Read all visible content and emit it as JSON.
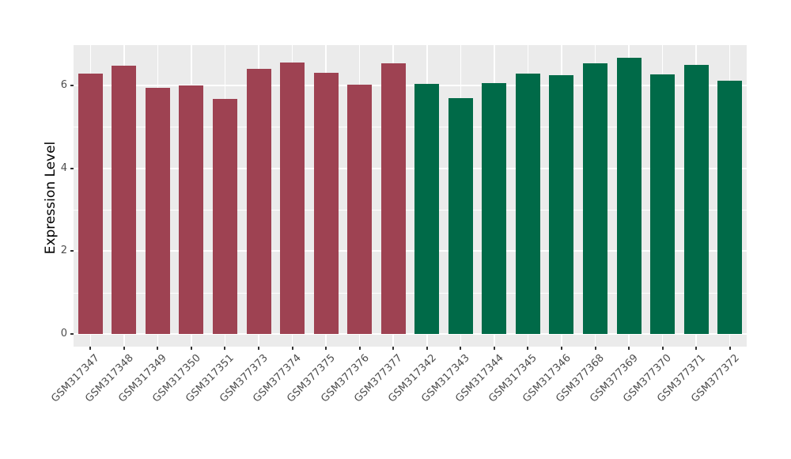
{
  "chart_data": {
    "type": "bar",
    "title": "",
    "xlabel": "",
    "ylabel": "Expression Level",
    "ylim": [
      0,
      7
    ],
    "ytick_values": [
      0,
      2,
      4,
      6
    ],
    "minor_gridline_values": [
      1,
      3,
      5
    ],
    "grid": "on",
    "legend_position": "none",
    "categories": [
      "GSM317347",
      "GSM317348",
      "GSM317349",
      "GSM317350",
      "GSM317351",
      "GSM377373",
      "GSM377374",
      "GSM377375",
      "GSM377376",
      "GSM377377",
      "GSM317342",
      "GSM317343",
      "GSM317344",
      "GSM317345",
      "GSM317346",
      "GSM377368",
      "GSM377369",
      "GSM377370",
      "GSM377371",
      "GSM377372"
    ],
    "values": [
      6.29,
      6.48,
      5.94,
      5.99,
      5.68,
      6.4,
      6.55,
      6.31,
      6.01,
      6.53,
      6.03,
      5.7,
      6.05,
      6.29,
      6.24,
      6.54,
      6.66,
      6.27,
      6.5,
      6.12
    ],
    "groups": [
      1,
      1,
      1,
      1,
      1,
      1,
      1,
      1,
      1,
      1,
      2,
      2,
      2,
      2,
      2,
      2,
      2,
      2,
      2,
      2
    ],
    "group_colors": {
      "1": "#9E4252",
      "2": "#006A48"
    },
    "colors": {
      "panel_background": "#EBEBEB",
      "gridline": "#FFFFFF",
      "axis_text": "#4D4D4D",
      "tick_mark": "#333333",
      "axis_title": "#000000",
      "outer_background": "#FFFFFF"
    }
  }
}
